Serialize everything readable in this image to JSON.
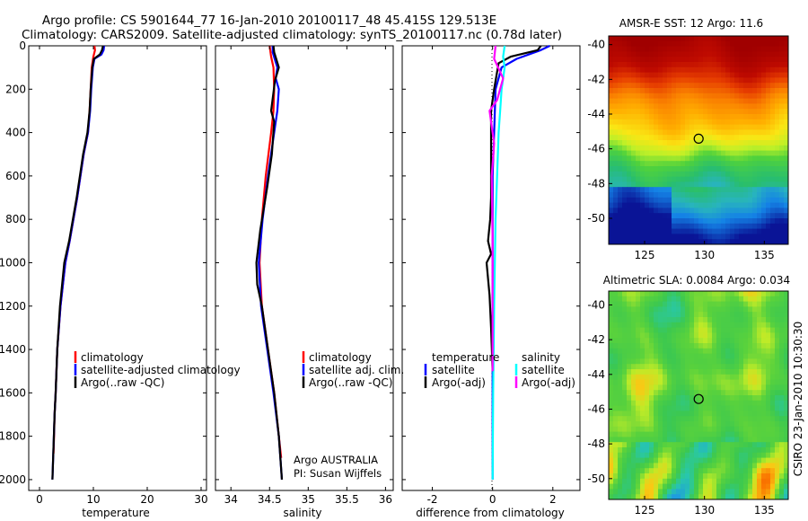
{
  "header": {
    "title_line1": "Argo profile: CS 5901644_77 16-Jan-2010 20100117_48 45.415S 129.513E",
    "title_line2": "Climatology: CARS2009. Satellite-adjusted climatology: synTS_20100117.nc (0.78d later)"
  },
  "colors": {
    "climatology": "#ff0000",
    "satellite": "#0000ff",
    "argo": "#000000",
    "sat_diff_salinity": "#00ffff",
    "argo_diff_salinity": "#ff00ff"
  },
  "panels": {
    "temperature": {
      "xlabel": "temperature",
      "legend": [
        "climatology",
        "satellite-adjusted climatology",
        "Argo(..raw -QC)"
      ]
    },
    "salinity": {
      "xlabel": "salinity",
      "legend": [
        "climatology",
        "satellite adj. clim.",
        "Argo(..raw -QC)"
      ],
      "note_line1": "Argo AUSTRALIA",
      "note_line2": "PI: Susan Wijffels"
    },
    "difference": {
      "xlabel": "difference from climatology",
      "legend_head_t": "temperature",
      "legend_head_s": "salinity",
      "legend_t": [
        "satellite",
        "Argo(-adj)"
      ],
      "legend_s": [
        "satellite",
        "Argo(-adj)"
      ]
    },
    "sst_map": {
      "title": "AMSR-E SST: 12 Argo: 11.6"
    },
    "sla_map": {
      "title": "Altimetric SLA: 0.0084  Argo: 0.034"
    }
  },
  "stamp": "CSIRO 23-Jan-2010 10:30:30",
  "chart_data": [
    {
      "type": "line",
      "name": "temperature-profile",
      "xlabel": "temperature",
      "ylabel": "",
      "xlim": [
        -2,
        31
      ],
      "ylim": [
        2050,
        0
      ],
      "xticks": [
        0,
        10,
        20,
        30
      ],
      "yticks": [
        0,
        200,
        400,
        600,
        800,
        1000,
        1200,
        1400,
        1600,
        1800,
        2000
      ],
      "series": [
        {
          "name": "climatology",
          "color": "#ff0000",
          "x": [
            10.2,
            10.3,
            10.0,
            9.7,
            9.5,
            9.3,
            9.0,
            8.2,
            7.0,
            5.6,
            4.8,
            3.9,
            3.3,
            3.0,
            2.8,
            2.7,
            2.6
          ],
          "y": [
            0,
            20,
            50,
            100,
            200,
            300,
            400,
            500,
            700,
            900,
            1000,
            1200,
            1400,
            1600,
            1700,
            1800,
            1880
          ]
        },
        {
          "name": "satellite-adjusted climatology",
          "color": "#0000ff",
          "x": [
            12.0,
            11.9,
            11.5,
            10.2,
            9.9,
            9.6,
            9.4,
            9.0,
            8.2,
            7.0,
            5.6,
            4.8,
            3.9,
            3.3,
            3.0,
            2.8,
            2.6,
            2.4
          ],
          "y": [
            0,
            20,
            40,
            60,
            100,
            200,
            300,
            400,
            500,
            700,
            900,
            1000,
            1200,
            1400,
            1600,
            1700,
            1850,
            2000
          ]
        },
        {
          "name": "Argo(..raw -QC)",
          "color": "#000000",
          "x": [
            11.8,
            11.6,
            11.2,
            10.1,
            9.8,
            9.5,
            9.3,
            8.9,
            8.1,
            6.9,
            5.5,
            4.6,
            3.8,
            3.3,
            3.0,
            2.8,
            2.6,
            2.4
          ],
          "y": [
            0,
            20,
            40,
            60,
            100,
            200,
            300,
            400,
            500,
            700,
            900,
            1000,
            1200,
            1400,
            1600,
            1700,
            1850,
            2000
          ]
        }
      ]
    },
    {
      "type": "line",
      "name": "salinity-profile",
      "xlabel": "salinity",
      "ylabel": "",
      "xlim": [
        33.8,
        36.1
      ],
      "ylim": [
        2050,
        0
      ],
      "xticks": [
        34,
        34.5,
        35,
        35.5,
        36
      ],
      "series": [
        {
          "name": "climatology",
          "color": "#ff0000",
          "x": [
            34.5,
            34.52,
            34.55,
            34.56,
            34.55,
            34.52,
            34.45,
            34.4,
            34.37,
            34.4,
            34.48,
            34.56,
            34.62,
            34.65
          ],
          "y": [
            0,
            50,
            100,
            200,
            300,
            400,
            600,
            800,
            1000,
            1200,
            1400,
            1600,
            1800,
            1900
          ]
        },
        {
          "name": "satellite adj. clim.",
          "color": "#0000ff",
          "x": [
            34.54,
            34.54,
            34.6,
            34.58,
            34.62,
            34.6,
            34.56,
            34.48,
            34.41,
            34.36,
            34.39,
            34.47,
            34.55,
            34.62,
            34.66
          ],
          "y": [
            0,
            30,
            100,
            150,
            200,
            300,
            400,
            600,
            800,
            1000,
            1200,
            1400,
            1600,
            1800,
            2000
          ]
        },
        {
          "name": "Argo(..raw -QC)",
          "color": "#000000",
          "x": [
            34.55,
            34.56,
            34.62,
            34.57,
            34.52,
            34.56,
            34.53,
            34.47,
            34.38,
            34.33,
            34.34,
            34.4,
            34.48,
            34.56,
            34.62,
            34.66
          ],
          "y": [
            0,
            30,
            100,
            160,
            300,
            350,
            500,
            650,
            850,
            1000,
            1100,
            1200,
            1400,
            1600,
            1800,
            2000
          ]
        }
      ]
    },
    {
      "type": "line",
      "name": "difference-profile",
      "xlabel": "difference from climatology",
      "ylabel": "",
      "xlim": [
        -3.0,
        2.9
      ],
      "ylim": [
        2050,
        0
      ],
      "xticks": [
        -2,
        0,
        2
      ],
      "series": [
        {
          "name": "temperature satellite",
          "color": "#0000ff",
          "x": [
            1.9,
            1.6,
            0.8,
            0.3,
            0.1,
            0.05,
            0.0,
            0.0,
            0.0,
            0.0,
            0.0
          ],
          "y": [
            0,
            20,
            60,
            100,
            200,
            400,
            600,
            1000,
            1400,
            1800,
            2000
          ]
        },
        {
          "name": "temperature Argo(-adj)",
          "color": "#000000",
          "x": [
            1.6,
            1.5,
            0.6,
            0.2,
            0.15,
            0.05,
            -0.05,
            -0.05,
            -0.05,
            -0.08,
            -0.15,
            -0.05,
            -0.2,
            -0.1,
            -0.05,
            0.0
          ],
          "y": [
            0,
            20,
            50,
            80,
            120,
            200,
            300,
            500,
            700,
            800,
            900,
            960,
            1000,
            1150,
            1300,
            1500
          ]
        },
        {
          "name": "salinity satellite",
          "color": "#00ffff",
          "x": [
            0.4,
            0.35,
            0.4,
            0.3,
            0.25,
            0.2,
            0.15,
            0.1,
            0.05,
            0.02,
            0.0
          ],
          "y": [
            0,
            50,
            100,
            200,
            300,
            400,
            600,
            800,
            1200,
            1600,
            2000
          ]
        },
        {
          "name": "salinity Argo(-adj)",
          "color": "#ff00ff",
          "x": [
            0.1,
            0.05,
            0.35,
            0.15,
            -0.1,
            0.05,
            -0.03,
            0.0,
            0.0,
            0.0
          ],
          "y": [
            0,
            60,
            150,
            250,
            300,
            450,
            600,
            900,
            1300,
            1500
          ]
        }
      ]
    },
    {
      "type": "heatmap",
      "name": "sst-map",
      "title": "AMSR-E SST: 12 Argo: 11.6",
      "xlim": [
        122,
        137
      ],
      "ylim": [
        -51.5,
        -39.5
      ],
      "xticks": [
        125,
        130,
        135
      ],
      "yticks": [
        -40,
        -42,
        -44,
        -46,
        -48,
        -50
      ],
      "argo_position": {
        "lon": 129.513,
        "lat": -45.415
      }
    },
    {
      "type": "heatmap",
      "name": "sla-map",
      "title": "Altimetric SLA: 0.0084  Argo: 0.034",
      "xlim": [
        122,
        137
      ],
      "ylim": [
        -51.2,
        -39.2
      ],
      "xticks": [
        125,
        130,
        135
      ],
      "yticks": [
        -40,
        -42,
        -44,
        -46,
        -48,
        -50
      ],
      "argo_position": {
        "lon": 129.513,
        "lat": -45.415
      }
    }
  ]
}
